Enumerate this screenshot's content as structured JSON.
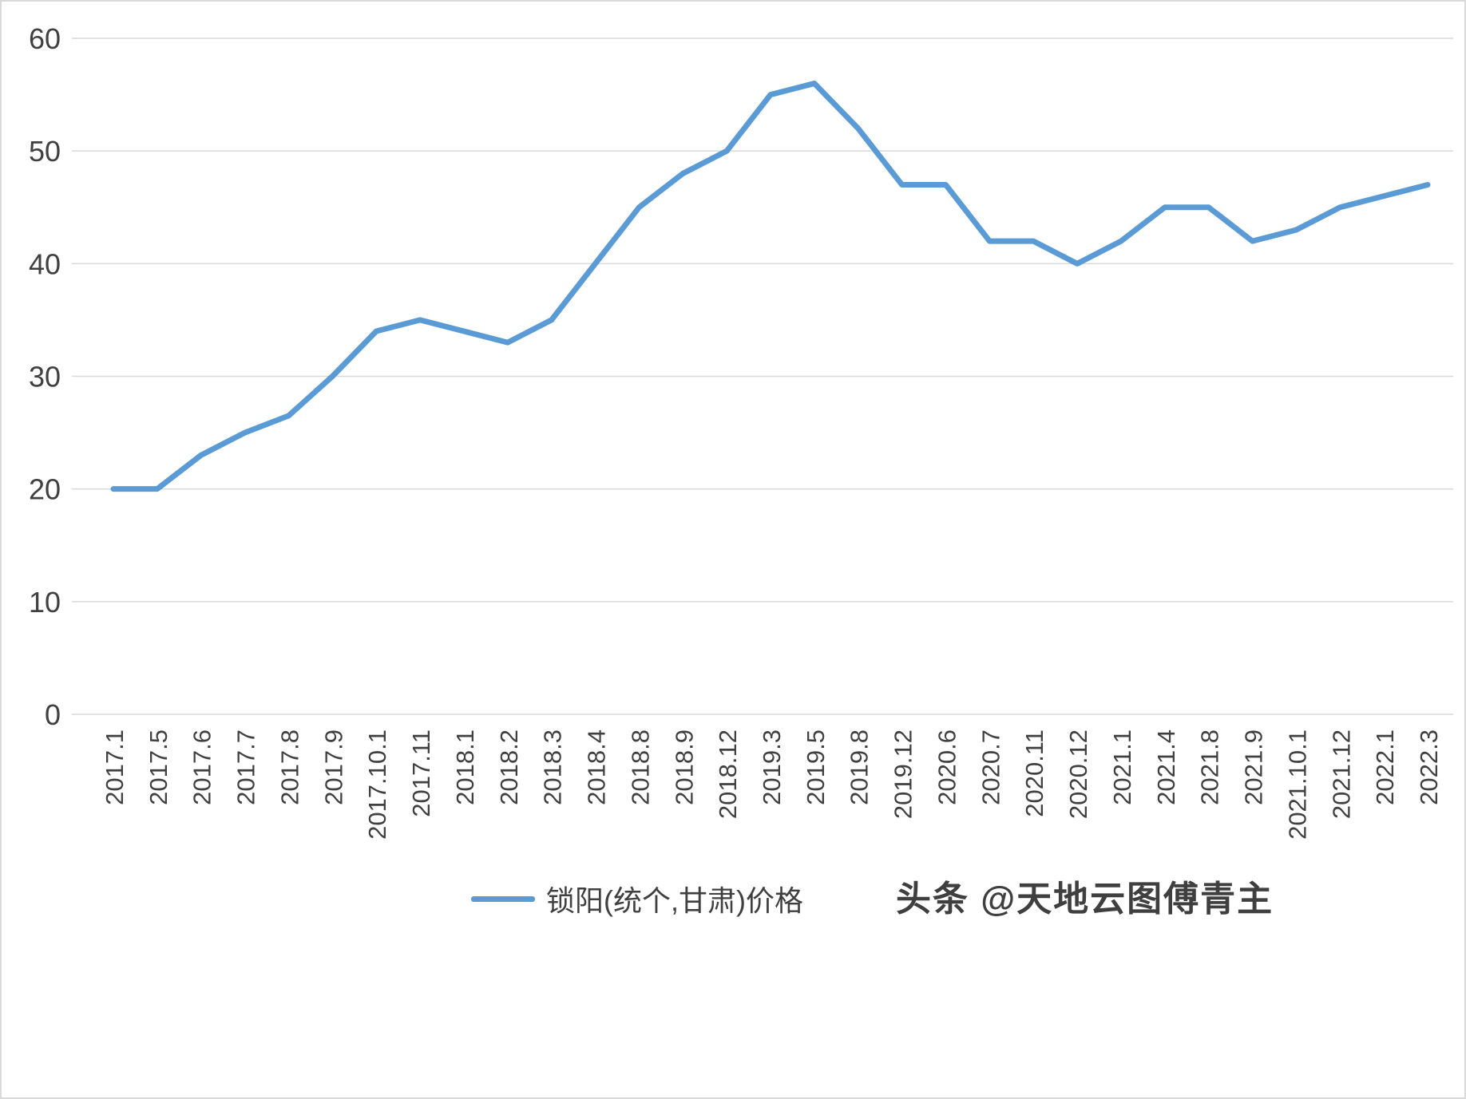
{
  "legend": {
    "label": "锁阳(统个,甘肃)价格"
  },
  "watermark": "头条 @天地云图傅青主",
  "chart_data": {
    "type": "line",
    "title": "",
    "xlabel": "",
    "ylabel": "",
    "categories": [
      "2017.1",
      "2017.5",
      "2017.6",
      "2017.7",
      "2017.8",
      "2017.9",
      "2017.10.1",
      "2017.11",
      "2018.1",
      "2018.2",
      "2018.3",
      "2018.4",
      "2018.8",
      "2018.9",
      "2018.12",
      "2019.3",
      "2019.5",
      "2019.8",
      "2019.12",
      "2020.6",
      "2020.7",
      "2020.11",
      "2020.12",
      "2021.1",
      "2021.4",
      "2021.8",
      "2021.9",
      "2021.10.1",
      "2021.12",
      "2022.1",
      "2022.3"
    ],
    "series": [
      {
        "name": "锁阳(统个,甘肃)价格",
        "values": [
          20,
          20,
          23,
          25,
          26.5,
          30,
          34,
          35,
          34,
          33,
          35,
          40,
          45,
          48,
          50,
          55,
          56,
          52,
          47,
          47,
          42,
          42,
          40,
          42,
          45,
          45,
          42,
          43,
          45,
          46,
          47
        ]
      }
    ],
    "ylim": [
      0,
      60
    ],
    "ytick_step": 10,
    "grid": "horizontal",
    "legend_position": "bottom",
    "line_color": "#5B9BD5",
    "gridline_color": "#d9d9d9",
    "label_color": "#404040"
  }
}
